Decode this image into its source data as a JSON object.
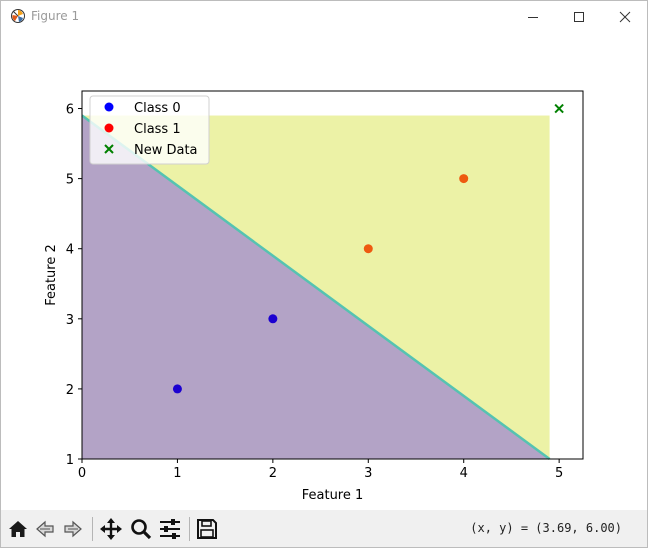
{
  "window": {
    "title": "Figure 1",
    "controls": {
      "minimize": "minimize",
      "maximize": "maximize",
      "close": "close"
    }
  },
  "toolbar": {
    "buttons": [
      "home-icon",
      "back-icon",
      "forward-icon",
      "pan-icon",
      "zoom-icon",
      "configure-subplots-icon",
      "save-icon"
    ],
    "coords_readout": "(x, y) = (3.69, 6.00)"
  },
  "colors": {
    "class0_region": "#b3a3c6",
    "class1_region": "#ecf2a6",
    "boundary": "#55c3b1",
    "class0_point": "#0000ff",
    "class1_point": "#ff0000",
    "new_data_point": "#008000"
  },
  "chart_data": {
    "type": "scatter",
    "title": "",
    "xlabel": "Feature 1",
    "ylabel": "Feature 2",
    "xlim": [
      0,
      5.25
    ],
    "ylim": [
      1,
      6.25
    ],
    "xticks": [
      0,
      1,
      2,
      3,
      4,
      5
    ],
    "yticks": [
      1,
      2,
      3,
      4,
      5,
      6
    ],
    "grid": false,
    "legend_position": "top-left",
    "decision_region": {
      "x_range": [
        0,
        4.9
      ],
      "y_range": [
        1,
        5.9
      ],
      "boundary_x_plus_y": 5.9
    },
    "series": [
      {
        "name": "Class 0",
        "marker": "circle",
        "color": "#0000ff",
        "points": [
          [
            1,
            2
          ],
          [
            2,
            3
          ]
        ]
      },
      {
        "name": "Class 1",
        "marker": "circle",
        "color": "#ff0000",
        "points": [
          [
            3,
            4
          ],
          [
            4,
            5
          ]
        ]
      },
      {
        "name": "New Data",
        "marker": "x",
        "color": "#008000",
        "points": [
          [
            5,
            6
          ]
        ]
      }
    ]
  }
}
